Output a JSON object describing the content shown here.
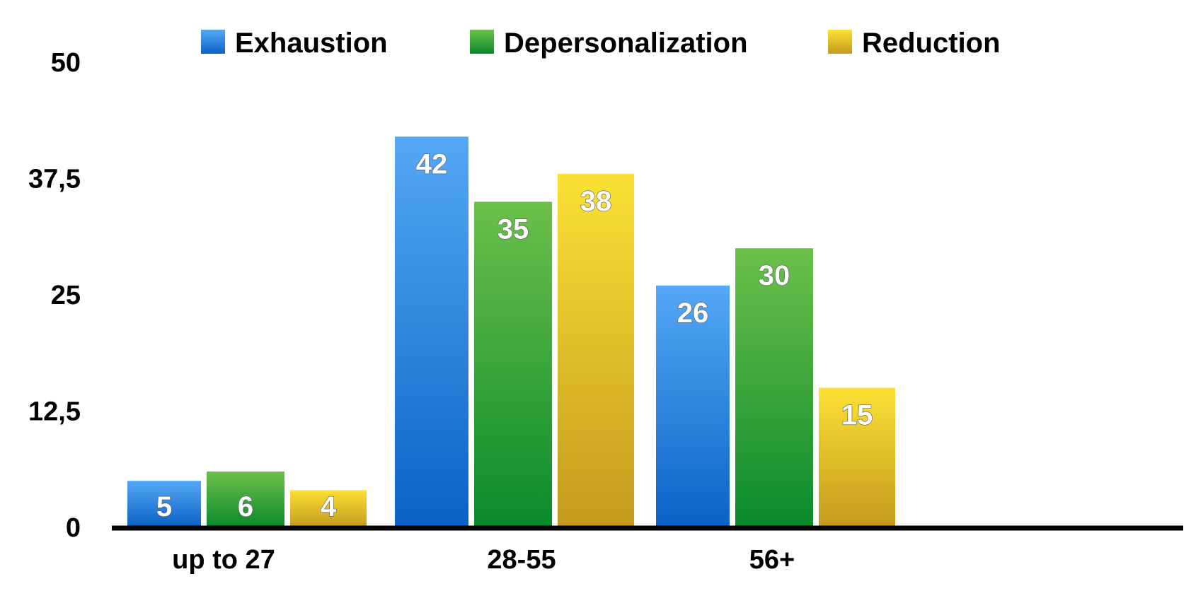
{
  "chart_data": {
    "type": "bar",
    "title": "",
    "xlabel": "",
    "ylabel": "",
    "categories": [
      "up to 27",
      "28-55",
      "56+"
    ],
    "series": [
      {
        "name": "Exhaustion",
        "values": [
          5,
          42,
          26
        ],
        "color_top": "#55a8f5",
        "color_bottom": "#0b62c6"
      },
      {
        "name": "Depersonalization",
        "values": [
          6,
          35,
          30
        ],
        "color_top": "#6cc04a",
        "color_bottom": "#0a8a2c"
      },
      {
        "name": "Reduction",
        "values": [
          4,
          38,
          15
        ],
        "color_top": "#fbe135",
        "color_bottom": "#c49a1e"
      }
    ],
    "ylim": [
      0,
      50
    ],
    "yticks": [
      0,
      12.5,
      25,
      37.5,
      50
    ],
    "ytick_labels": [
      "0",
      "12,5",
      "25",
      "37,5",
      "50"
    ],
    "grid": false,
    "legend_position": "top",
    "data_labels": true
  }
}
